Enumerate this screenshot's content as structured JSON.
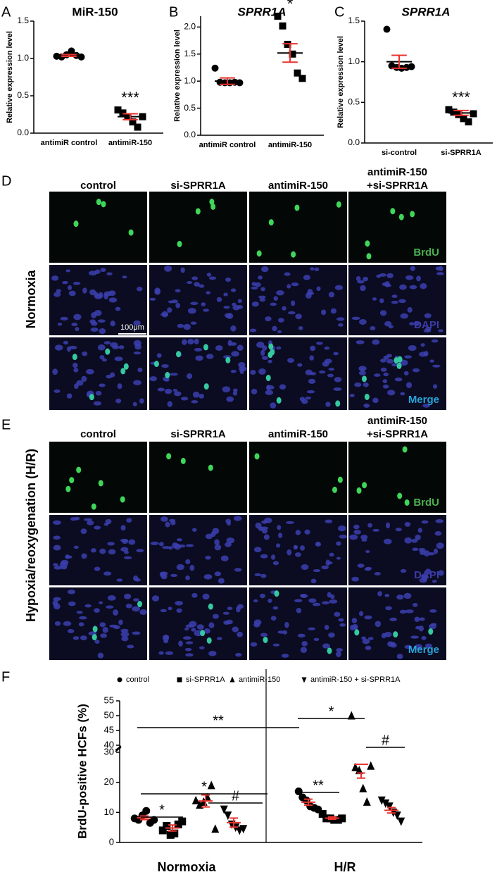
{
  "chart_data": [
    {
      "panel": "A",
      "type": "dot",
      "title": "MiR-150",
      "y_label": "Relative expression level",
      "ylim": [
        0,
        1.5
      ],
      "yticks": [
        {
          "value": 0,
          "label": "0.0"
        },
        0.5,
        {
          "value": 1,
          "label": "1.0"
        },
        1.5
      ],
      "categories": [
        "antimiR control",
        "antimiR-150"
      ],
      "groups": [
        {
          "marker": "circle",
          "values": [
            1.03,
            1.02,
            1.05,
            1.1,
            1.04,
            1.02
          ],
          "mean": 1.04,
          "sem": 0.012
        },
        {
          "marker": "square",
          "values": [
            0.31,
            0.27,
            0.22,
            0.15,
            0.08,
            0.22
          ],
          "mean": 0.22,
          "sem": 0.04
        }
      ],
      "annotations": [
        null,
        "***"
      ],
      "point_color": "#000000",
      "mean_color": "#000000",
      "error_color": "#e8332e"
    },
    {
      "panel": "B",
      "type": "dot",
      "title": "SPRR1A",
      "y_label": "Relative expression level",
      "ylim": [
        0,
        2.2
      ],
      "yticks": [
        {
          "value": 0,
          "label": "0.0"
        },
        0.5,
        {
          "value": 1,
          "label": "1.0"
        },
        1.5,
        {
          "value": 2,
          "label": "2.0"
        }
      ],
      "categories": [
        "antimiR control",
        "antimiR-150"
      ],
      "groups": [
        {
          "marker": "circle",
          "values": [
            1.24,
            0.98,
            0.97,
            0.97,
            0.98,
            0.97
          ],
          "mean": 1.0,
          "sem": 0.06
        },
        {
          "marker": "square",
          "values": [
            2.2,
            2.02,
            1.68,
            1.5,
            1.15,
            1.05
          ],
          "mean": 1.52,
          "sem": 0.17
        }
      ],
      "annotations": [
        null,
        "*"
      ],
      "point_color": "#000000",
      "mean_color": "#000000",
      "error_color": "#e8332e"
    },
    {
      "panel": "C",
      "type": "dot",
      "title": "SPRR1A",
      "y_label": "Relative expression level",
      "ylim": [
        0,
        1.5
      ],
      "yticks": [
        {
          "value": 0,
          "label": "0.0"
        },
        0.5,
        {
          "value": 1,
          "label": "1.0"
        },
        1.5
      ],
      "categories": [
        "si-control",
        "si-SPRR1A"
      ],
      "groups": [
        {
          "marker": "circle",
          "values": [
            1.4,
            0.95,
            0.93,
            0.92,
            0.93,
            0.94
          ],
          "mean": 1.0,
          "sem": 0.08
        },
        {
          "marker": "square",
          "values": [
            0.41,
            0.38,
            0.35,
            0.3,
            0.26,
            0.36
          ],
          "mean": 0.37,
          "sem": 0.03
        }
      ],
      "annotations": [
        null,
        "***"
      ],
      "point_color": "#000000",
      "mean_color": "#000000",
      "error_color": "#e8332e"
    },
    {
      "panel": "F",
      "type": "grouped_dot",
      "y_label": "BrdU-positive HCFs (%)",
      "ylim": [
        0,
        55
      ],
      "ybreak": [
        30,
        40
      ],
      "yticks": [
        0,
        10,
        20,
        30,
        40,
        45,
        50,
        55
      ],
      "groups": [
        "Normoxia",
        "H/R"
      ],
      "series": [
        {
          "name": "control",
          "marker": "circle",
          "values": [
            [
              8,
              7.5,
              9,
              10.5,
              6.5,
              7.5
            ],
            [
              17,
              15,
              14,
              12,
              11.5,
              11
            ]
          ],
          "means": [
            8.2,
            13.4
          ],
          "sems": [
            0.6,
            1.0
          ]
        },
        {
          "name": "si-SPRR1A",
          "marker": "square",
          "values": [
            [
              4,
              5.5,
              2.5,
              3,
              6,
              7
            ],
            [
              9.5,
              8,
              8,
              7.5,
              7.5,
              8
            ]
          ],
          "means": [
            4.8,
            8.1
          ],
          "sems": [
            1.0,
            0.4
          ]
        },
        {
          "name": "antimiR-150",
          "marker": "triangle-up",
          "values": [
            [
              14,
              12.5,
              13.5,
              15,
              19,
              4.5
            ],
            [
              50,
              25,
              24,
              18,
              13.5,
              25.5
            ]
          ],
          "means": [
            13.8,
            26
          ],
          "sems": [
            2.0,
            4.6
          ]
        },
        {
          "name": "antimiR-150 + si-SPRR1A",
          "marker": "triangle-down",
          "values": [
            [
              11,
              9,
              6,
              5,
              4,
              4.5
            ],
            [
              14,
              13,
              12,
              10,
              9,
              7
            ]
          ],
          "means": [
            6.6,
            10.7
          ],
          "sems": [
            1.5,
            0.9
          ]
        }
      ],
      "annotations": [
        "**",
        "*",
        "#",
        "*",
        "#",
        "*",
        "**"
      ],
      "point_color": "#000000",
      "mean_color": "#e8332e",
      "error_color": "#e8332e"
    }
  ],
  "microscopy": [
    {
      "panel": "D",
      "condition": "Normoxia",
      "columns": [
        [
          "control"
        ],
        [
          "si-SPRR1A"
        ],
        [
          "antimiR-150"
        ],
        [
          "antimiR-150",
          "+si-SPRR1A"
        ]
      ],
      "rows": [
        {
          "label": "BrdU",
          "color": "#4caf50"
        },
        {
          "label": "DAPI",
          "color": "#3c3ca8"
        },
        {
          "label": "Merge",
          "color": "#29a3d6"
        }
      ],
      "scale_bar": "100μm"
    },
    {
      "panel": "E",
      "condition": "Hypoxia/reoxygenation (H/R)",
      "columns": [
        [
          "control"
        ],
        [
          "si-SPRR1A"
        ],
        [
          "antimiR-150"
        ],
        [
          "antimiR-150",
          "+si-SPRR1A"
        ]
      ],
      "rows": [
        {
          "label": "BrdU",
          "color": "#4caf50"
        },
        {
          "label": "DAPI",
          "color": "#3c3ca8"
        },
        {
          "label": "Merge",
          "color": "#29a3d6"
        }
      ]
    }
  ]
}
